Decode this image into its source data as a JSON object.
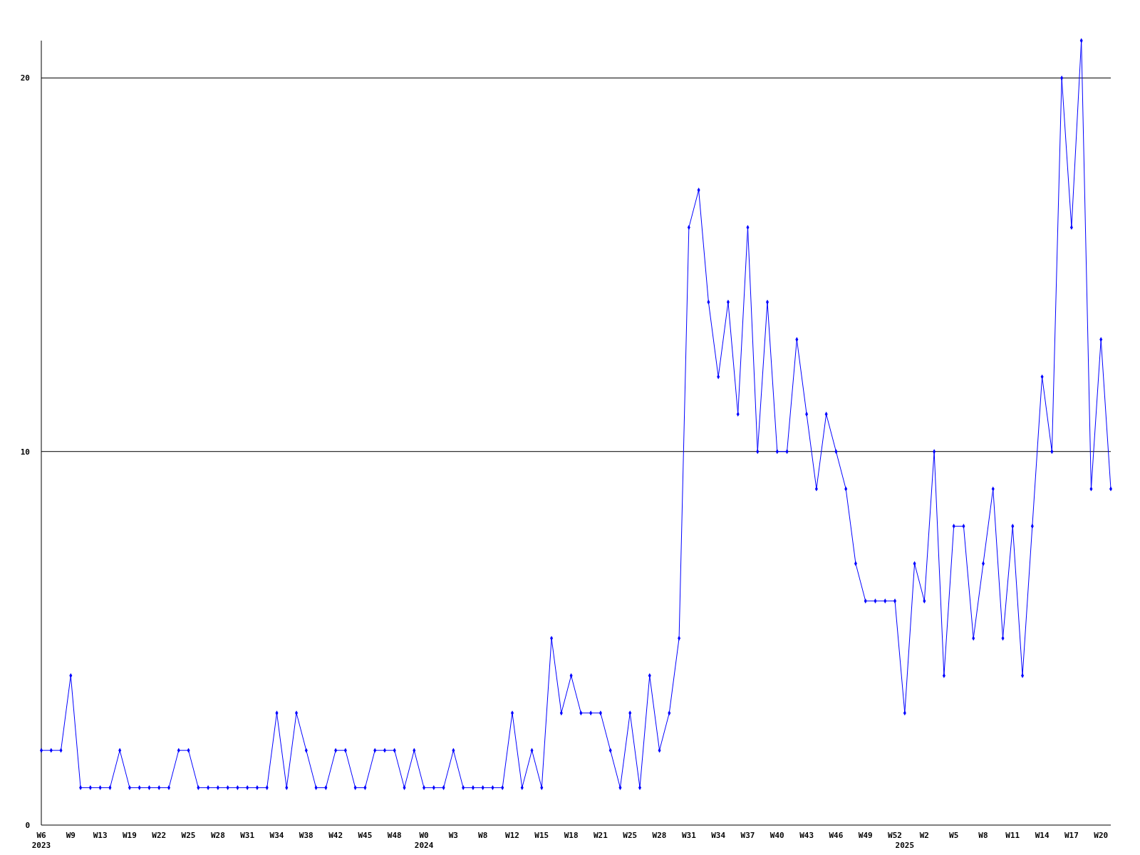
{
  "chart_data": {
    "type": "line",
    "categories": [
      "W6\n2023",
      null,
      null,
      "W9",
      null,
      null,
      "W13",
      null,
      null,
      "W19",
      null,
      null,
      "W22",
      null,
      null,
      "W25",
      null,
      null,
      "W28",
      null,
      null,
      "W31",
      null,
      null,
      "W34",
      null,
      null,
      "W38",
      null,
      null,
      "W42",
      null,
      null,
      "W45",
      null,
      null,
      "W48",
      null,
      null,
      "W0\n2024",
      null,
      null,
      "W3",
      null,
      null,
      "W8",
      null,
      null,
      "W12",
      null,
      null,
      "W15",
      null,
      null,
      "W18",
      null,
      null,
      "W21",
      null,
      null,
      "W25",
      null,
      null,
      "W28",
      null,
      null,
      "W31",
      null,
      null,
      "W34",
      null,
      null,
      "W37",
      null,
      null,
      "W40",
      null,
      null,
      "W43",
      null,
      null,
      "W46",
      null,
      null,
      "W49",
      null,
      null,
      "W52",
      "\n2025",
      null,
      "W2",
      null,
      null,
      "W5",
      null,
      null,
      "W8",
      null,
      null,
      "W11",
      null,
      null,
      "W14",
      null,
      null,
      "W17",
      null,
      null,
      "W20",
      null
    ],
    "series": [
      {
        "color": "#0000ff",
        "values": [
          2,
          2,
          2,
          4,
          1,
          1,
          1,
          1,
          2,
          1,
          1,
          1,
          1,
          1,
          2,
          2,
          1,
          1,
          1,
          1,
          1,
          1,
          1,
          1,
          3,
          1,
          3,
          2,
          1,
          1,
          2,
          2,
          1,
          1,
          2,
          2,
          2,
          1,
          2,
          1,
          1,
          1,
          2,
          1,
          1,
          1,
          1,
          1,
          3,
          1,
          2,
          1,
          5,
          3,
          4,
          3,
          3,
          3,
          2,
          1,
          3,
          1,
          4,
          2,
          3,
          5,
          16,
          17,
          14,
          12,
          14,
          11,
          16,
          10,
          14,
          10,
          10,
          13,
          11,
          9,
          11,
          10,
          9,
          7,
          6,
          6,
          6,
          6,
          3,
          7,
          6,
          10,
          4,
          8,
          8,
          5,
          7,
          9,
          5,
          8,
          4,
          8,
          12,
          10,
          20,
          16,
          21,
          9,
          13,
          9
        ]
      }
    ],
    "ylim": [
      0,
      21
    ],
    "yticks": [
      0,
      10,
      20
    ],
    "grid": "y",
    "marker": "diamond",
    "line_style": "solid"
  }
}
